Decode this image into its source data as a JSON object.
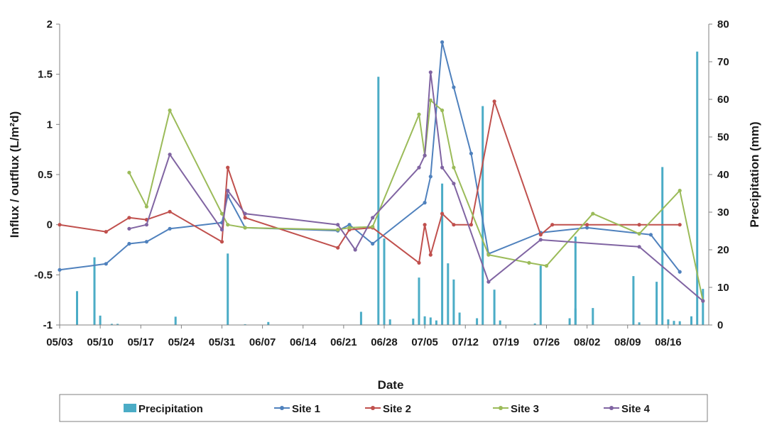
{
  "chart_data": {
    "type": "line",
    "xlabel": "Date",
    "ylabel": "Influx / outflux (L/m²d)",
    "y2label": "Precipitation (mm)",
    "ylim": [
      -1,
      2
    ],
    "y2lim": [
      0,
      80
    ],
    "xlim": [
      "05/03",
      "08/23"
    ],
    "x_ticks": [
      "05/03",
      "05/10",
      "05/17",
      "05/24",
      "05/31",
      "06/07",
      "06/14",
      "06/21",
      "06/28",
      "07/05",
      "07/12",
      "07/19",
      "07/26",
      "08/02",
      "08/09",
      "08/16"
    ],
    "y_ticks": [
      -1,
      -0.5,
      0,
      0.5,
      1,
      1.5,
      2
    ],
    "y2_ticks": [
      0,
      10,
      20,
      30,
      40,
      50,
      60,
      70,
      80
    ],
    "grid": false,
    "legend_position": "bottom",
    "colors": {
      "Precipitation": "#4bacc6",
      "Site 1": "#4f81bd",
      "Site 2": "#c0504d",
      "Site 3": "#9bbb59",
      "Site 4": "#8064a2"
    },
    "precipitation": {
      "name": "Precipitation",
      "axis": "right",
      "points": [
        [
          "05/06",
          9
        ],
        [
          "05/09",
          18
        ],
        [
          "05/10",
          2.5
        ],
        [
          "05/12",
          0.3
        ],
        [
          "05/13",
          0.3
        ],
        [
          "05/23",
          2.2
        ],
        [
          "06/01",
          19
        ],
        [
          "06/04",
          0.2
        ],
        [
          "06/08",
          0.8
        ],
        [
          "06/24",
          3.5
        ],
        [
          "06/27",
          66
        ],
        [
          "06/28",
          23
        ],
        [
          "06/29",
          1.5
        ],
        [
          "07/03",
          1.7
        ],
        [
          "07/04",
          8.3
        ],
        [
          "07/04",
          12.6
        ],
        [
          "07/05",
          2.3
        ],
        [
          "07/06",
          2
        ],
        [
          "07/07",
          1.2
        ],
        [
          "07/08",
          37.6
        ],
        [
          "07/09",
          16.4
        ],
        [
          "07/10",
          12.1
        ],
        [
          "07/11",
          3.3
        ],
        [
          "07/14",
          1.8
        ],
        [
          "07/15",
          58.2
        ],
        [
          "07/17",
          9.4
        ],
        [
          "07/18",
          1.2
        ],
        [
          "07/24",
          0.4
        ],
        [
          "07/25",
          15.8
        ],
        [
          "07/30",
          1.8
        ],
        [
          "07/31",
          4.4
        ],
        [
          "07/31",
          23.5
        ],
        [
          "08/03",
          4.5
        ],
        [
          "08/10",
          13
        ],
        [
          "08/11",
          0.7
        ],
        [
          "08/14",
          11.5
        ],
        [
          "08/15",
          42
        ],
        [
          "08/16",
          1.5
        ],
        [
          "08/17",
          1.1
        ],
        [
          "08/18",
          1
        ],
        [
          "08/20",
          2.3
        ],
        [
          "08/21",
          72.7
        ],
        [
          "08/22",
          9.6
        ]
      ]
    },
    "series": [
      {
        "name": "Site 1",
        "axis": "left",
        "points": [
          [
            "05/03",
            -0.45
          ],
          [
            "05/11",
            -0.39
          ],
          [
            "05/15",
            -0.19
          ],
          [
            "05/18",
            -0.17
          ],
          [
            "05/22",
            -0.04
          ],
          [
            "05/31",
            0.02
          ],
          [
            "06/01",
            0.29
          ],
          [
            "06/04",
            -0.03
          ],
          [
            "06/20",
            -0.06
          ],
          [
            "06/22",
            0.0
          ],
          [
            "06/26",
            -0.19
          ],
          [
            "07/05",
            0.22
          ],
          [
            "07/06",
            0.48
          ],
          [
            "07/08",
            1.82
          ],
          [
            "07/10",
            1.37
          ],
          [
            "07/13",
            0.71
          ],
          [
            "07/16",
            -0.29
          ],
          [
            "07/25",
            -0.08
          ],
          [
            "08/02",
            -0.03
          ],
          [
            "08/13",
            -0.1
          ],
          [
            "08/18",
            -0.47
          ]
        ]
      },
      {
        "name": "Site 2",
        "axis": "left",
        "points": [
          [
            "05/03",
            0.0
          ],
          [
            "05/11",
            -0.07
          ],
          [
            "05/15",
            0.07
          ],
          [
            "05/18",
            0.05
          ],
          [
            "05/22",
            0.13
          ],
          [
            "05/31",
            -0.17
          ],
          [
            "06/01",
            0.57
          ],
          [
            "06/04",
            0.07
          ],
          [
            "06/20",
            -0.23
          ],
          [
            "06/22",
            -0.05
          ],
          [
            "06/26",
            -0.03
          ],
          [
            "07/04",
            -0.38
          ],
          [
            "07/05",
            0.0
          ],
          [
            "07/06",
            -0.3
          ],
          [
            "07/08",
            0.11
          ],
          [
            "07/10",
            0.0
          ],
          [
            "07/13",
            0.0
          ],
          [
            "07/17",
            1.23
          ],
          [
            "07/25",
            -0.1
          ],
          [
            "07/27",
            0.0
          ],
          [
            "08/02",
            0.0
          ],
          [
            "08/11",
            0.0
          ],
          [
            "08/18",
            0.0
          ]
        ]
      },
      {
        "name": "Site 3",
        "axis": "left",
        "points": [
          [
            "05/15",
            0.52
          ],
          [
            "05/18",
            0.18
          ],
          [
            "05/22",
            1.14
          ],
          [
            "05/31",
            0.11
          ],
          [
            "06/01",
            0.0
          ],
          [
            "06/04",
            -0.03
          ],
          [
            "06/20",
            -0.05
          ],
          [
            "06/22",
            -0.03
          ],
          [
            "06/26",
            -0.02
          ],
          [
            "07/04",
            1.1
          ],
          [
            "07/05",
            0.69
          ],
          [
            "07/06",
            1.24
          ],
          [
            "07/08",
            1.14
          ],
          [
            "07/10",
            0.57
          ],
          [
            "07/16",
            -0.3
          ],
          [
            "07/23",
            -0.38
          ],
          [
            "07/26",
            -0.41
          ],
          [
            "08/03",
            0.11
          ],
          [
            "08/11",
            -0.09
          ],
          [
            "08/18",
            0.34
          ],
          [
            "08/22",
            -0.76
          ]
        ]
      },
      {
        "name": "Site 4",
        "axis": "left",
        "points": [
          [
            "05/15",
            -0.04
          ],
          [
            "05/18",
            0.0
          ],
          [
            "05/22",
            0.7
          ],
          [
            "05/31",
            -0.05
          ],
          [
            "06/01",
            0.34
          ],
          [
            "06/04",
            0.11
          ],
          [
            "06/20",
            0.0
          ],
          [
            "06/23",
            -0.25
          ],
          [
            "06/26",
            0.07
          ],
          [
            "07/04",
            0.57
          ],
          [
            "07/05",
            0.69
          ],
          [
            "07/06",
            1.52
          ],
          [
            "07/08",
            0.57
          ],
          [
            "07/10",
            0.41
          ],
          [
            "07/16",
            -0.57
          ],
          [
            "07/25",
            -0.15
          ],
          [
            "08/11",
            -0.22
          ],
          [
            "08/22",
            -0.76
          ]
        ]
      }
    ]
  }
}
